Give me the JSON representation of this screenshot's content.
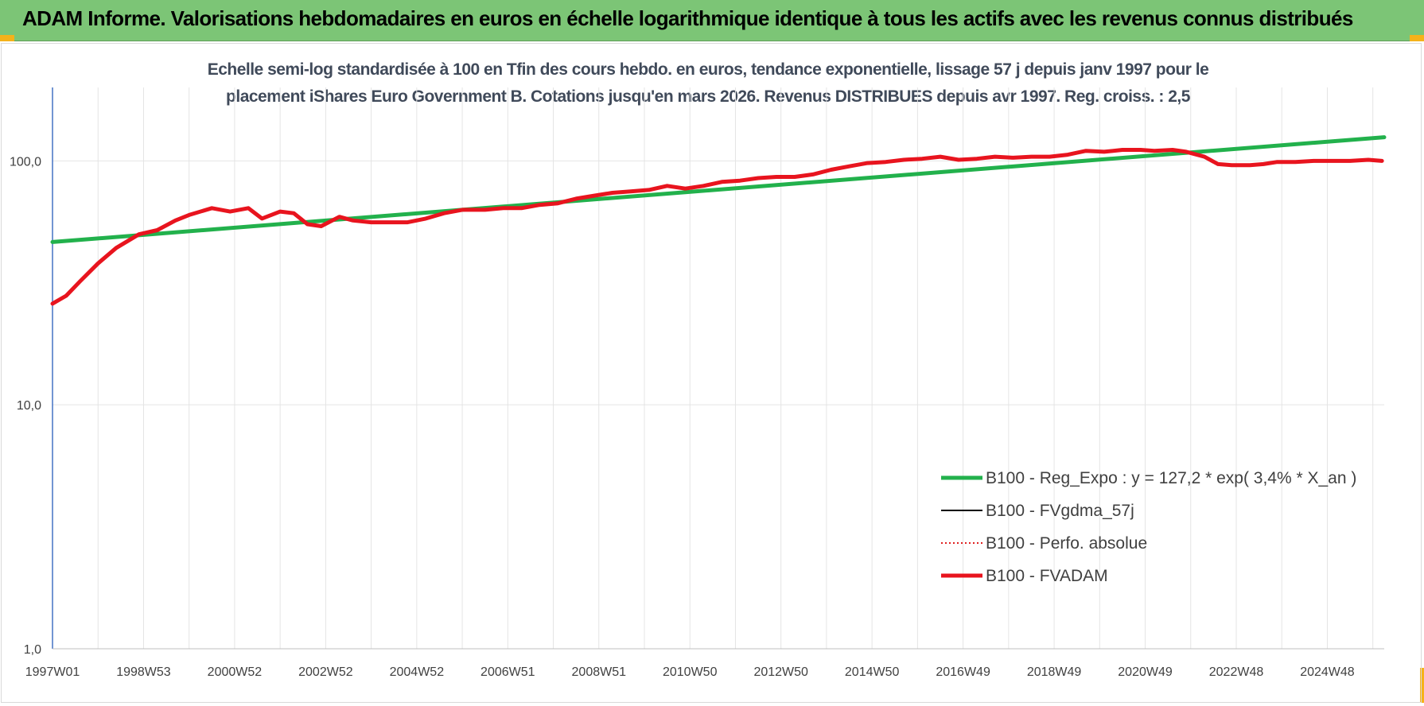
{
  "header": {
    "title": "ADAM Informe. Valorisations hebdomadaires en euros en échelle logarithmique identique à tous les actifs avec les revenus connus distribués"
  },
  "chart_data": {
    "type": "line",
    "title": "",
    "subtitle_lines": [
      "Echelle semi-log standardisée à 100 en Tfin des cours hebdo. en euros, tendance exponentielle, lissage 57 j depuis janv 1997 pour le",
      "placement iShares Euro Government B. Cotations jusqu'en mars 2026. Revenus DISTRIBUES depuis avr 1997.  Reg. croiss. : 2,5"
    ],
    "xlabel": "",
    "ylabel": "",
    "y_scale": "log",
    "ylim": [
      1,
      200
    ],
    "y_ticks": [
      {
        "value": 1,
        "label": "1,0"
      },
      {
        "value": 10,
        "label": "10,0"
      },
      {
        "value": 100,
        "label": "100,0"
      }
    ],
    "xlim": [
      1997.0,
      2026.25
    ],
    "x_ticks": [
      {
        "value": 1997.0,
        "label": "1997W01"
      },
      {
        "value": 1999.0,
        "label": "1998W53"
      },
      {
        "value": 2001.0,
        "label": "2000W52"
      },
      {
        "value": 2003.0,
        "label": "2002W52"
      },
      {
        "value": 2005.0,
        "label": "2004W52"
      },
      {
        "value": 2007.0,
        "label": "2006W51"
      },
      {
        "value": 2009.0,
        "label": "2008W51"
      },
      {
        "value": 2011.0,
        "label": "2010W50"
      },
      {
        "value": 2013.0,
        "label": "2012W50"
      },
      {
        "value": 2015.0,
        "label": "2014W50"
      },
      {
        "value": 2017.0,
        "label": "2016W49"
      },
      {
        "value": 2019.0,
        "label": "2018W49"
      },
      {
        "value": 2021.0,
        "label": "2020W49"
      },
      {
        "value": 2023.0,
        "label": "2022W48"
      },
      {
        "value": 2025.0,
        "label": "2024W48"
      }
    ],
    "grid": {
      "vertical_per_year": true,
      "horizontal": true
    },
    "legend_position": "bottom-right",
    "series": [
      {
        "name": "B100 - Reg_Expo : y = 127,2 * exp( 3,4% *  X_an )",
        "color": "#22b14c",
        "style": "solid-thick",
        "x": [
          1997.0,
          2026.25
        ],
        "y": [
          46.5,
          125
        ]
      },
      {
        "name": "B100 - FVgdma_57j",
        "color": "#000000",
        "style": "solid-thin",
        "x": [],
        "y": []
      },
      {
        "name": "B100 - Perfo. absolue",
        "color": "#e02020",
        "style": "dotted",
        "x": [],
        "y": []
      },
      {
        "name": "B100 - FVADAM",
        "color": "#e8141e",
        "style": "solid-thick",
        "x": [
          1997.0,
          1997.3,
          1997.6,
          1998.0,
          1998.4,
          1998.9,
          1999.3,
          1999.7,
          2000.0,
          2000.5,
          2000.9,
          2001.3,
          2001.6,
          2002.0,
          2002.3,
          2002.6,
          2002.9,
          2003.3,
          2003.6,
          2004.0,
          2004.4,
          2004.8,
          2005.2,
          2005.6,
          2006.0,
          2006.5,
          2006.9,
          2007.3,
          2007.7,
          2008.1,
          2008.5,
          2008.9,
          2009.3,
          2009.7,
          2010.1,
          2010.5,
          2010.9,
          2011.3,
          2011.7,
          2012.1,
          2012.5,
          2012.9,
          2013.3,
          2013.7,
          2014.1,
          2014.5,
          2014.9,
          2015.3,
          2015.7,
          2016.1,
          2016.5,
          2016.9,
          2017.3,
          2017.7,
          2018.1,
          2018.5,
          2018.9,
          2019.3,
          2019.7,
          2020.1,
          2020.5,
          2020.9,
          2021.2,
          2021.6,
          2021.9,
          2022.3,
          2022.6,
          2022.9,
          2023.3,
          2023.6,
          2023.9,
          2024.3,
          2024.7,
          2025.1,
          2025.5,
          2025.9,
          2026.2
        ],
        "y": [
          26,
          28,
          32,
          38,
          44,
          50,
          52,
          57,
          60,
          64,
          62,
          64,
          58,
          62,
          61,
          55,
          54,
          59,
          57,
          56,
          56,
          56,
          58,
          61,
          63,
          63,
          64,
          64,
          66,
          67,
          70,
          72,
          74,
          75,
          76,
          79,
          77,
          79,
          82,
          83,
          85,
          86,
          86,
          88,
          92,
          95,
          98,
          99,
          101,
          102,
          104,
          101,
          102,
          104,
          103,
          104,
          104,
          106,
          110,
          109,
          111,
          111,
          110,
          111,
          109,
          104,
          97,
          96,
          96,
          97,
          99,
          99,
          100,
          100,
          100,
          101,
          100
        ]
      }
    ]
  }
}
